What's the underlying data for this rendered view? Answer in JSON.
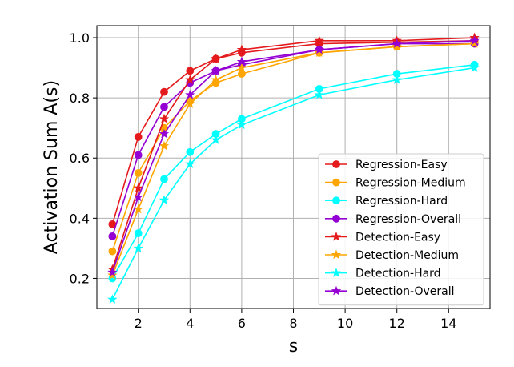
{
  "chart_data": {
    "type": "line",
    "title": "",
    "xlabel": "s",
    "ylabel": "Activation Sum A(s)",
    "xlim": [
      0.4,
      15.6
    ],
    "ylim": [
      0.1,
      1.04
    ],
    "xticks": [
      2,
      4,
      6,
      8,
      10,
      12,
      14
    ],
    "yticks": [
      0.2,
      0.4,
      0.6,
      0.8,
      1.0
    ],
    "ytick_labels": [
      "0.2",
      "0.4",
      "0.6",
      "0.8",
      "1.0"
    ],
    "grid": true,
    "legend_position": "lower-right",
    "x": [
      1,
      2,
      3,
      4,
      5,
      6,
      9,
      12,
      15
    ],
    "series": [
      {
        "name": "Regression-Easy",
        "color": "#e41a1c",
        "marker": "circle",
        "values": [
          0.38,
          0.67,
          0.82,
          0.89,
          0.93,
          0.95,
          0.98,
          0.985,
          0.99
        ]
      },
      {
        "name": "Regression-Medium",
        "color": "#ffa500",
        "marker": "circle",
        "values": [
          0.29,
          0.55,
          0.7,
          0.79,
          0.85,
          0.88,
          0.95,
          0.97,
          0.98
        ]
      },
      {
        "name": "Regression-Hard",
        "color": "#00ffff",
        "marker": "circle",
        "values": [
          0.2,
          0.35,
          0.53,
          0.62,
          0.68,
          0.73,
          0.83,
          0.88,
          0.91
        ]
      },
      {
        "name": "Regression-Overall",
        "color": "#9400d3",
        "marker": "circle",
        "values": [
          0.34,
          0.61,
          0.77,
          0.85,
          0.89,
          0.91,
          0.96,
          0.98,
          0.98
        ]
      },
      {
        "name": "Detection-Easy",
        "color": "#e41a1c",
        "marker": "star",
        "values": [
          0.23,
          0.5,
          0.73,
          0.86,
          0.93,
          0.96,
          0.99,
          0.99,
          1.0
        ]
      },
      {
        "name": "Detection-Medium",
        "color": "#ffa500",
        "marker": "star",
        "values": [
          0.21,
          0.43,
          0.64,
          0.78,
          0.86,
          0.9,
          0.95,
          0.97,
          0.98
        ]
      },
      {
        "name": "Detection-Hard",
        "color": "#00ffff",
        "marker": "star",
        "values": [
          0.13,
          0.3,
          0.46,
          0.58,
          0.66,
          0.71,
          0.81,
          0.86,
          0.9
        ]
      },
      {
        "name": "Detection-Overall",
        "color": "#9400d3",
        "marker": "star",
        "values": [
          0.22,
          0.47,
          0.68,
          0.81,
          0.89,
          0.92,
          0.96,
          0.98,
          0.99
        ]
      }
    ]
  }
}
